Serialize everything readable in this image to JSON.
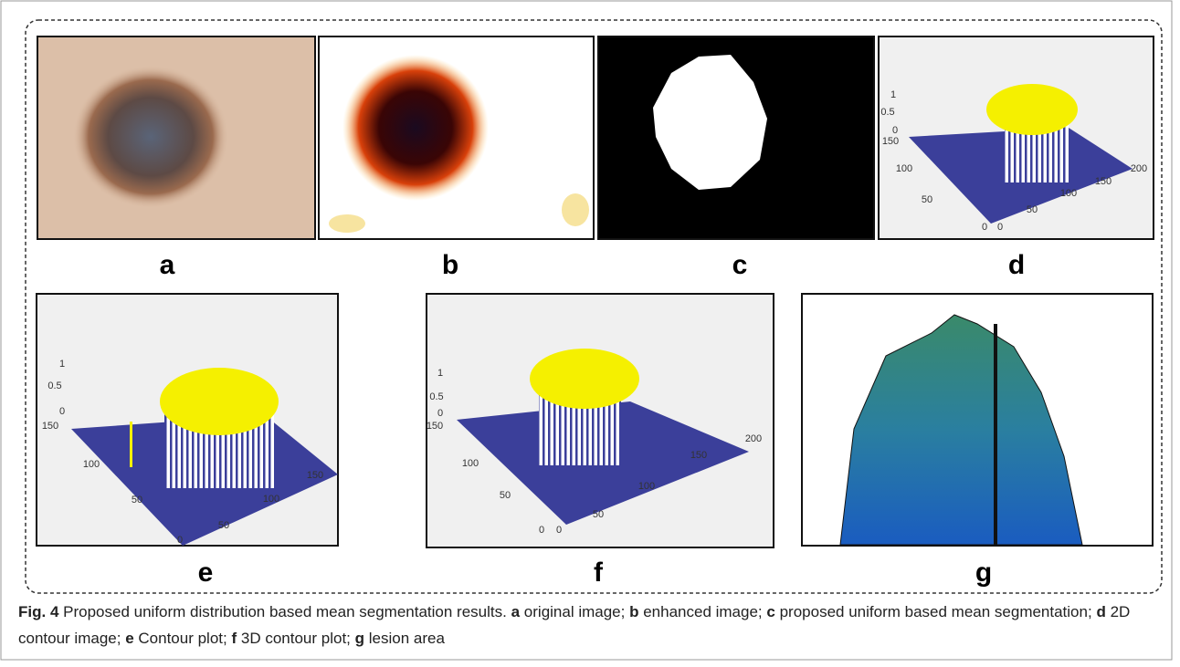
{
  "panels": [
    {
      "label": "a"
    },
    {
      "label": "b"
    },
    {
      "label": "c"
    },
    {
      "label": "d",
      "ticks": [
        "1",
        "0.5",
        "0",
        "150",
        "100",
        "50",
        "0",
        "0",
        "50",
        "100",
        "150",
        "200"
      ]
    },
    {
      "label": "e",
      "ticks": [
        "1",
        "0.5",
        "0",
        "150",
        "100",
        "50",
        "0",
        "50",
        "100",
        "150"
      ]
    },
    {
      "label": "f",
      "ticks": [
        "1",
        "0.5",
        "0",
        "150",
        "100",
        "50",
        "0",
        "0",
        "50",
        "100",
        "150",
        "200"
      ]
    },
    {
      "label": "g"
    }
  ],
  "caption": {
    "figure_label": "Fig. 4",
    "text": "Proposed uniform distribution based mean segmentation results.",
    "items": [
      {
        "key": "a",
        "text": "original image;"
      },
      {
        "key": "b",
        "text": "enhanced image;"
      },
      {
        "key": "c",
        "text": "proposed uniform based mean segmentation;"
      },
      {
        "key": "d",
        "text": "2D contour image;"
      },
      {
        "key": "e",
        "text": "Contour plot;"
      },
      {
        "key": "f",
        "text": "3D contour plot;"
      },
      {
        "key": "g",
        "text": "lesion area"
      }
    ]
  }
}
